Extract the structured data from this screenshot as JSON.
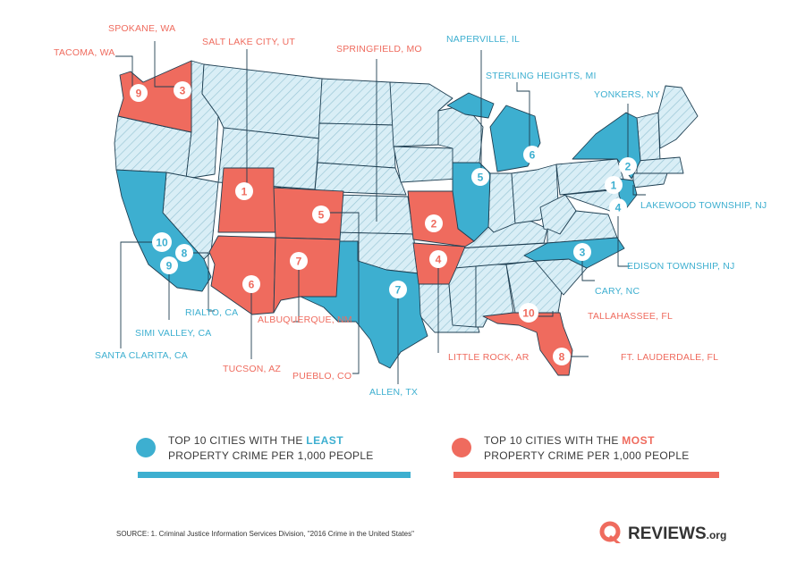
{
  "colors": {
    "red": "#ef6b5e",
    "blue": "#3dafd0",
    "light": "#d9eef6",
    "hatch": "#9bc7d6",
    "line": "#1f3f52"
  },
  "cities": [
    {
      "name": "TACOMA, WA",
      "group": "most",
      "rank": "9"
    },
    {
      "name": "SPOKANE, WA",
      "group": "most",
      "rank": "3"
    },
    {
      "name": "SALT LAKE CITY, UT",
      "group": "most",
      "rank": "1"
    },
    {
      "name": "SPRINGFIELD, MO",
      "group": "most",
      "rank": "2"
    },
    {
      "name": "NAPERVILLE, IL",
      "group": "least",
      "rank": "5"
    },
    {
      "name": "STERLING HEIGHTS, MI",
      "group": "least",
      "rank": "6"
    },
    {
      "name": "YONKERS, NY",
      "group": "least",
      "rank": "2"
    },
    {
      "name": "LAKEWOOD TOWNSHIP, NJ",
      "group": "least",
      "rank": "1"
    },
    {
      "name": "EDISON TOWNSHIP, NJ",
      "group": "least",
      "rank": "4"
    },
    {
      "name": "CARY, NC",
      "group": "least",
      "rank": "3"
    },
    {
      "name": "TALLAHASSEE, FL",
      "group": "most",
      "rank": "10"
    },
    {
      "name": "FT. LAUDERDALE, FL",
      "group": "most",
      "rank": "8"
    },
    {
      "name": "LITTLE ROCK, AR",
      "group": "most",
      "rank": "4"
    },
    {
      "name": "ALLEN, TX",
      "group": "least",
      "rank": "7"
    },
    {
      "name": "PUEBLO, CO",
      "group": "most",
      "rank": "5"
    },
    {
      "name": "TUCSON, AZ",
      "group": "most",
      "rank": "6"
    },
    {
      "name": "ALBUQUERQUE, NM",
      "group": "most",
      "rank": "7"
    },
    {
      "name": "RIALTO, CA",
      "group": "least",
      "rank": "8"
    },
    {
      "name": "SIMI VALLEY, CA",
      "group": "least",
      "rank": "9"
    },
    {
      "name": "SANTA CLARITA, CA",
      "group": "least",
      "rank": "10"
    }
  ],
  "legend": {
    "least": {
      "line1_prefix": "TOP 10 CITIES WITH THE ",
      "line1_emph": "LEAST",
      "line2": "PROPERTY CRIME PER 1,000 PEOPLE"
    },
    "most": {
      "line1_prefix": "TOP 10 CITIES WITH THE ",
      "line1_emph": "MOST",
      "line2": "PROPERTY CRIME PER 1,000 PEOPLE"
    }
  },
  "source": "SOURCE: 1. Criminal Justice Information Services Division, \"2016 Crime in the United States\"",
  "logo": {
    "word": "REVIEWS",
    "suffix": ".org",
    "icon": "q-logo-icon"
  }
}
